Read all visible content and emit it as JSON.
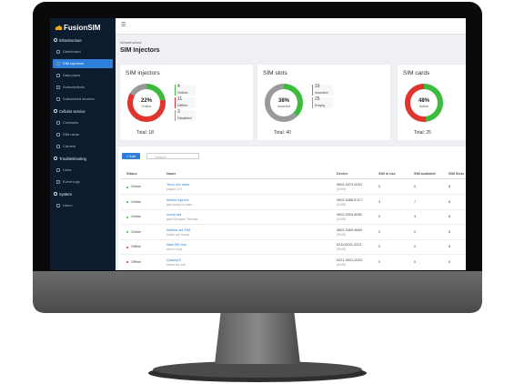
{
  "sidebar": {
    "brand": "FusionSIM",
    "sections": [
      {
        "title": "Infrastructure",
        "items": [
          "Dashboard",
          "SIM injectors",
          "Data plans",
          "Subscriptions",
          "Subscribed devices"
        ]
      },
      {
        "title": "Cellular service",
        "items": [
          "Contracts",
          "SIM cards",
          "Carriers"
        ]
      },
      {
        "title": "Troubleshooting",
        "items": [
          "Links",
          "Event logs"
        ]
      },
      {
        "title": "System",
        "items": [
          "Users"
        ]
      }
    ]
  },
  "header": {
    "menu": "☰",
    "breadcrumb": "Infrastructure",
    "title": "SIM Injectors"
  },
  "cards": [
    {
      "title": "SIM injectors",
      "percent": {
        "value": 22,
        "label": "22%"
      },
      "percent_caption": "Online",
      "total": "Total: 18",
      "items": [
        {
          "value": 4,
          "label": "Online",
          "color": "#3dbb3d"
        },
        {
          "value": 11,
          "label": "Offline",
          "color": "#e0342f"
        },
        {
          "value": 3,
          "label": "Disabled",
          "color": "#9a9a9a"
        }
      ]
    },
    {
      "title": "SIM slots",
      "percent": {
        "value": 38,
        "label": "38%"
      },
      "percent_caption": "Inserted",
      "total": "Total: 40",
      "items": [
        {
          "value": 15,
          "label": "Inserted",
          "color": "#3dbb3d"
        },
        {
          "value": 25,
          "label": "Empty",
          "color": "#9a9a9a"
        }
      ]
    },
    {
      "title": "SIM cards",
      "percent": {
        "value": 48,
        "label": "48%"
      },
      "percent_caption": "Active",
      "total": "Total: 25",
      "items": []
    }
  ],
  "table": {
    "add": "+ Add",
    "search": "Search",
    "columns": [
      "Status",
      "Name",
      "Device",
      "SIM in use",
      "SIM available",
      "SIM Slots"
    ],
    "rows": [
      [
        "Online",
        "Telco sim bank",
        "pagoro 123",
        "0602-0474-0024",
        "(SIMS)",
        "0",
        "0",
        "8"
      ],
      [
        "Online",
        "Mobile Injector",
        "gdp forsdy sol data",
        "0602-0488-E1C7",
        "(SIMS)",
        "3",
        "7",
        "8"
      ],
      [
        "Online",
        "iccom sbt",
        "gdp RIA Agent, Rauvias",
        "0602-0003-8080",
        "(SIMS)",
        "0",
        "3",
        "8"
      ],
      [
        "Online",
        "Mobiler sol SIM",
        "fadbur gdr forsdy",
        "0602-0469-6669",
        "(SIMS)",
        "0",
        "0",
        "8"
      ],
      [
        "Offline",
        "Main BE test",
        "view d.ch.ja",
        "0211-0021-0221",
        "(SIMS)",
        "0",
        "0",
        "8"
      ],
      [
        "Offline",
        "QuantyIO",
        "Urban bor sub",
        "0221-0021-0023",
        "(SIMS)",
        "0",
        "0",
        "8"
      ]
    ]
  }
}
